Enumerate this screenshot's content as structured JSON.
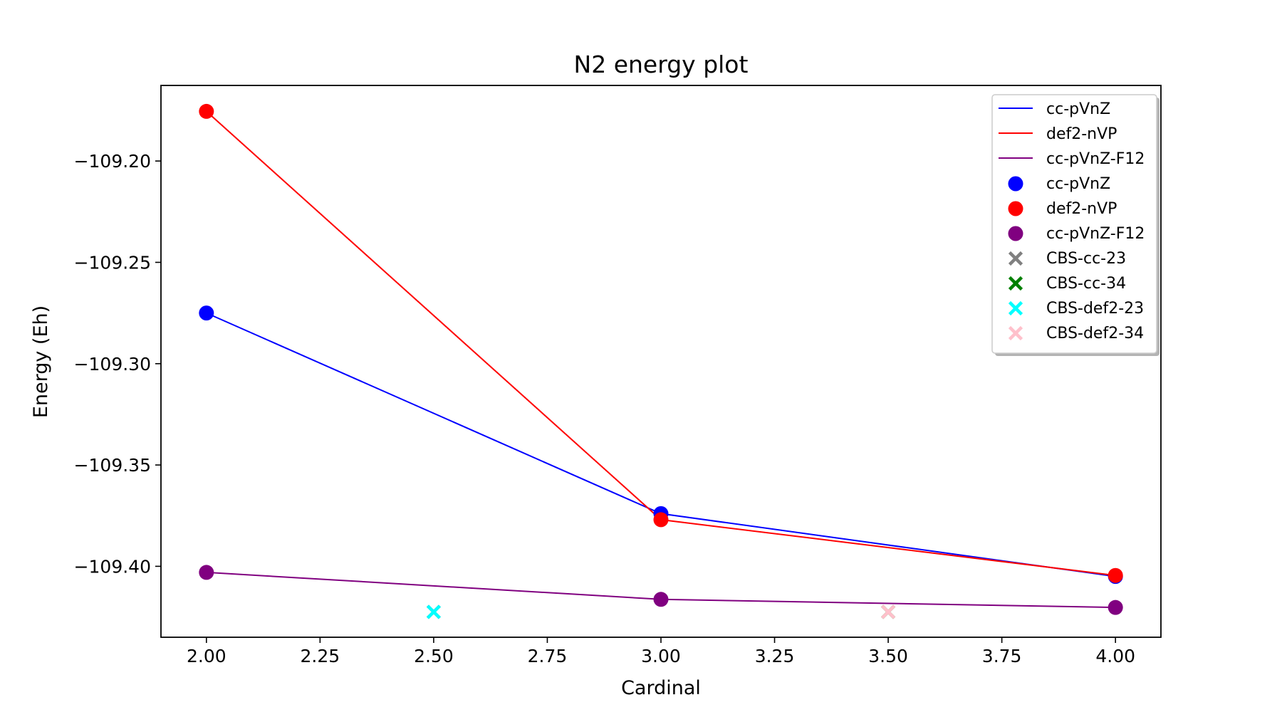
{
  "chart_data": {
    "type": "line",
    "title": "N2 energy plot",
    "xlabel": "Cardinal",
    "ylabel": "Energy (Eh)",
    "xlim": [
      1.9,
      4.1
    ],
    "ylim": [
      -109.435,
      -109.1627
    ],
    "x_ticks": [
      2.0,
      2.25,
      2.5,
      2.75,
      3.0,
      3.25,
      3.5,
      3.75,
      4.0
    ],
    "x_tick_labels": [
      "2.00",
      "2.25",
      "2.50",
      "2.75",
      "3.00",
      "3.25",
      "3.50",
      "3.75",
      "4.00"
    ],
    "y_ticks": [
      -109.2,
      -109.25,
      -109.3,
      -109.35,
      -109.4
    ],
    "y_tick_labels": [
      "−109.20",
      "−109.25",
      "−109.30",
      "−109.35",
      "−109.40"
    ],
    "grid": false,
    "legend_placement": "top-right",
    "line_series": [
      {
        "name": "cc-pVnZ",
        "color": "#0000ff",
        "x": [
          2,
          3,
          4
        ],
        "y": [
          -109.275,
          -109.374,
          -109.405
        ]
      },
      {
        "name": "def2-nVP",
        "color": "#ff0000",
        "x": [
          2,
          3,
          4
        ],
        "y": [
          -109.1755,
          -109.377,
          -109.4045
        ]
      },
      {
        "name": "cc-pVnZ-F12",
        "color": "#800080",
        "x": [
          2,
          3,
          4
        ],
        "y": [
          -109.403,
          -109.4163,
          -109.4203
        ]
      }
    ],
    "scatter_series": [
      {
        "name": "cc-pVnZ",
        "color": "#0000ff",
        "marker": "circle",
        "x": [
          2,
          3,
          4
        ],
        "y": [
          -109.275,
          -109.374,
          -109.405
        ]
      },
      {
        "name": "def2-nVP",
        "color": "#ff0000",
        "marker": "circle",
        "x": [
          2,
          3,
          4
        ],
        "y": [
          -109.1755,
          -109.377,
          -109.4045
        ]
      },
      {
        "name": "cc-pVnZ-F12",
        "color": "#800080",
        "marker": "circle",
        "x": [
          2,
          3,
          4
        ],
        "y": [
          -109.403,
          -109.4163,
          -109.4203
        ]
      },
      {
        "name": "CBS-cc-23",
        "color": "#808080",
        "marker": "x",
        "x": [
          2.5
        ],
        "y": [
          -109.4225
        ]
      },
      {
        "name": "CBS-cc-34",
        "color": "#008000",
        "marker": "x",
        "x": [
          3.5
        ],
        "y": [
          -109.4225
        ]
      },
      {
        "name": "CBS-def2-23",
        "color": "#00ffff",
        "marker": "x",
        "x": [
          2.5
        ],
        "y": [
          -109.4225
        ]
      },
      {
        "name": "CBS-def2-34",
        "color": "#ffc0cb",
        "marker": "x",
        "x": [
          3.5
        ],
        "y": [
          -109.4225
        ]
      }
    ],
    "legend_entries": [
      {
        "label": "cc-pVnZ",
        "kind": "line",
        "color": "#0000ff"
      },
      {
        "label": "def2-nVP",
        "kind": "line",
        "color": "#ff0000"
      },
      {
        "label": "cc-pVnZ-F12",
        "kind": "line",
        "color": "#800080"
      },
      {
        "label": "cc-pVnZ",
        "kind": "circle",
        "color": "#0000ff"
      },
      {
        "label": "def2-nVP",
        "kind": "circle",
        "color": "#ff0000"
      },
      {
        "label": "cc-pVnZ-F12",
        "kind": "circle",
        "color": "#800080"
      },
      {
        "label": "CBS-cc-23",
        "kind": "x",
        "color": "#808080"
      },
      {
        "label": "CBS-cc-34",
        "kind": "x",
        "color": "#008000"
      },
      {
        "label": "CBS-def2-23",
        "kind": "x",
        "color": "#00ffff"
      },
      {
        "label": "CBS-def2-34",
        "kind": "x",
        "color": "#ffc0cb"
      }
    ]
  }
}
